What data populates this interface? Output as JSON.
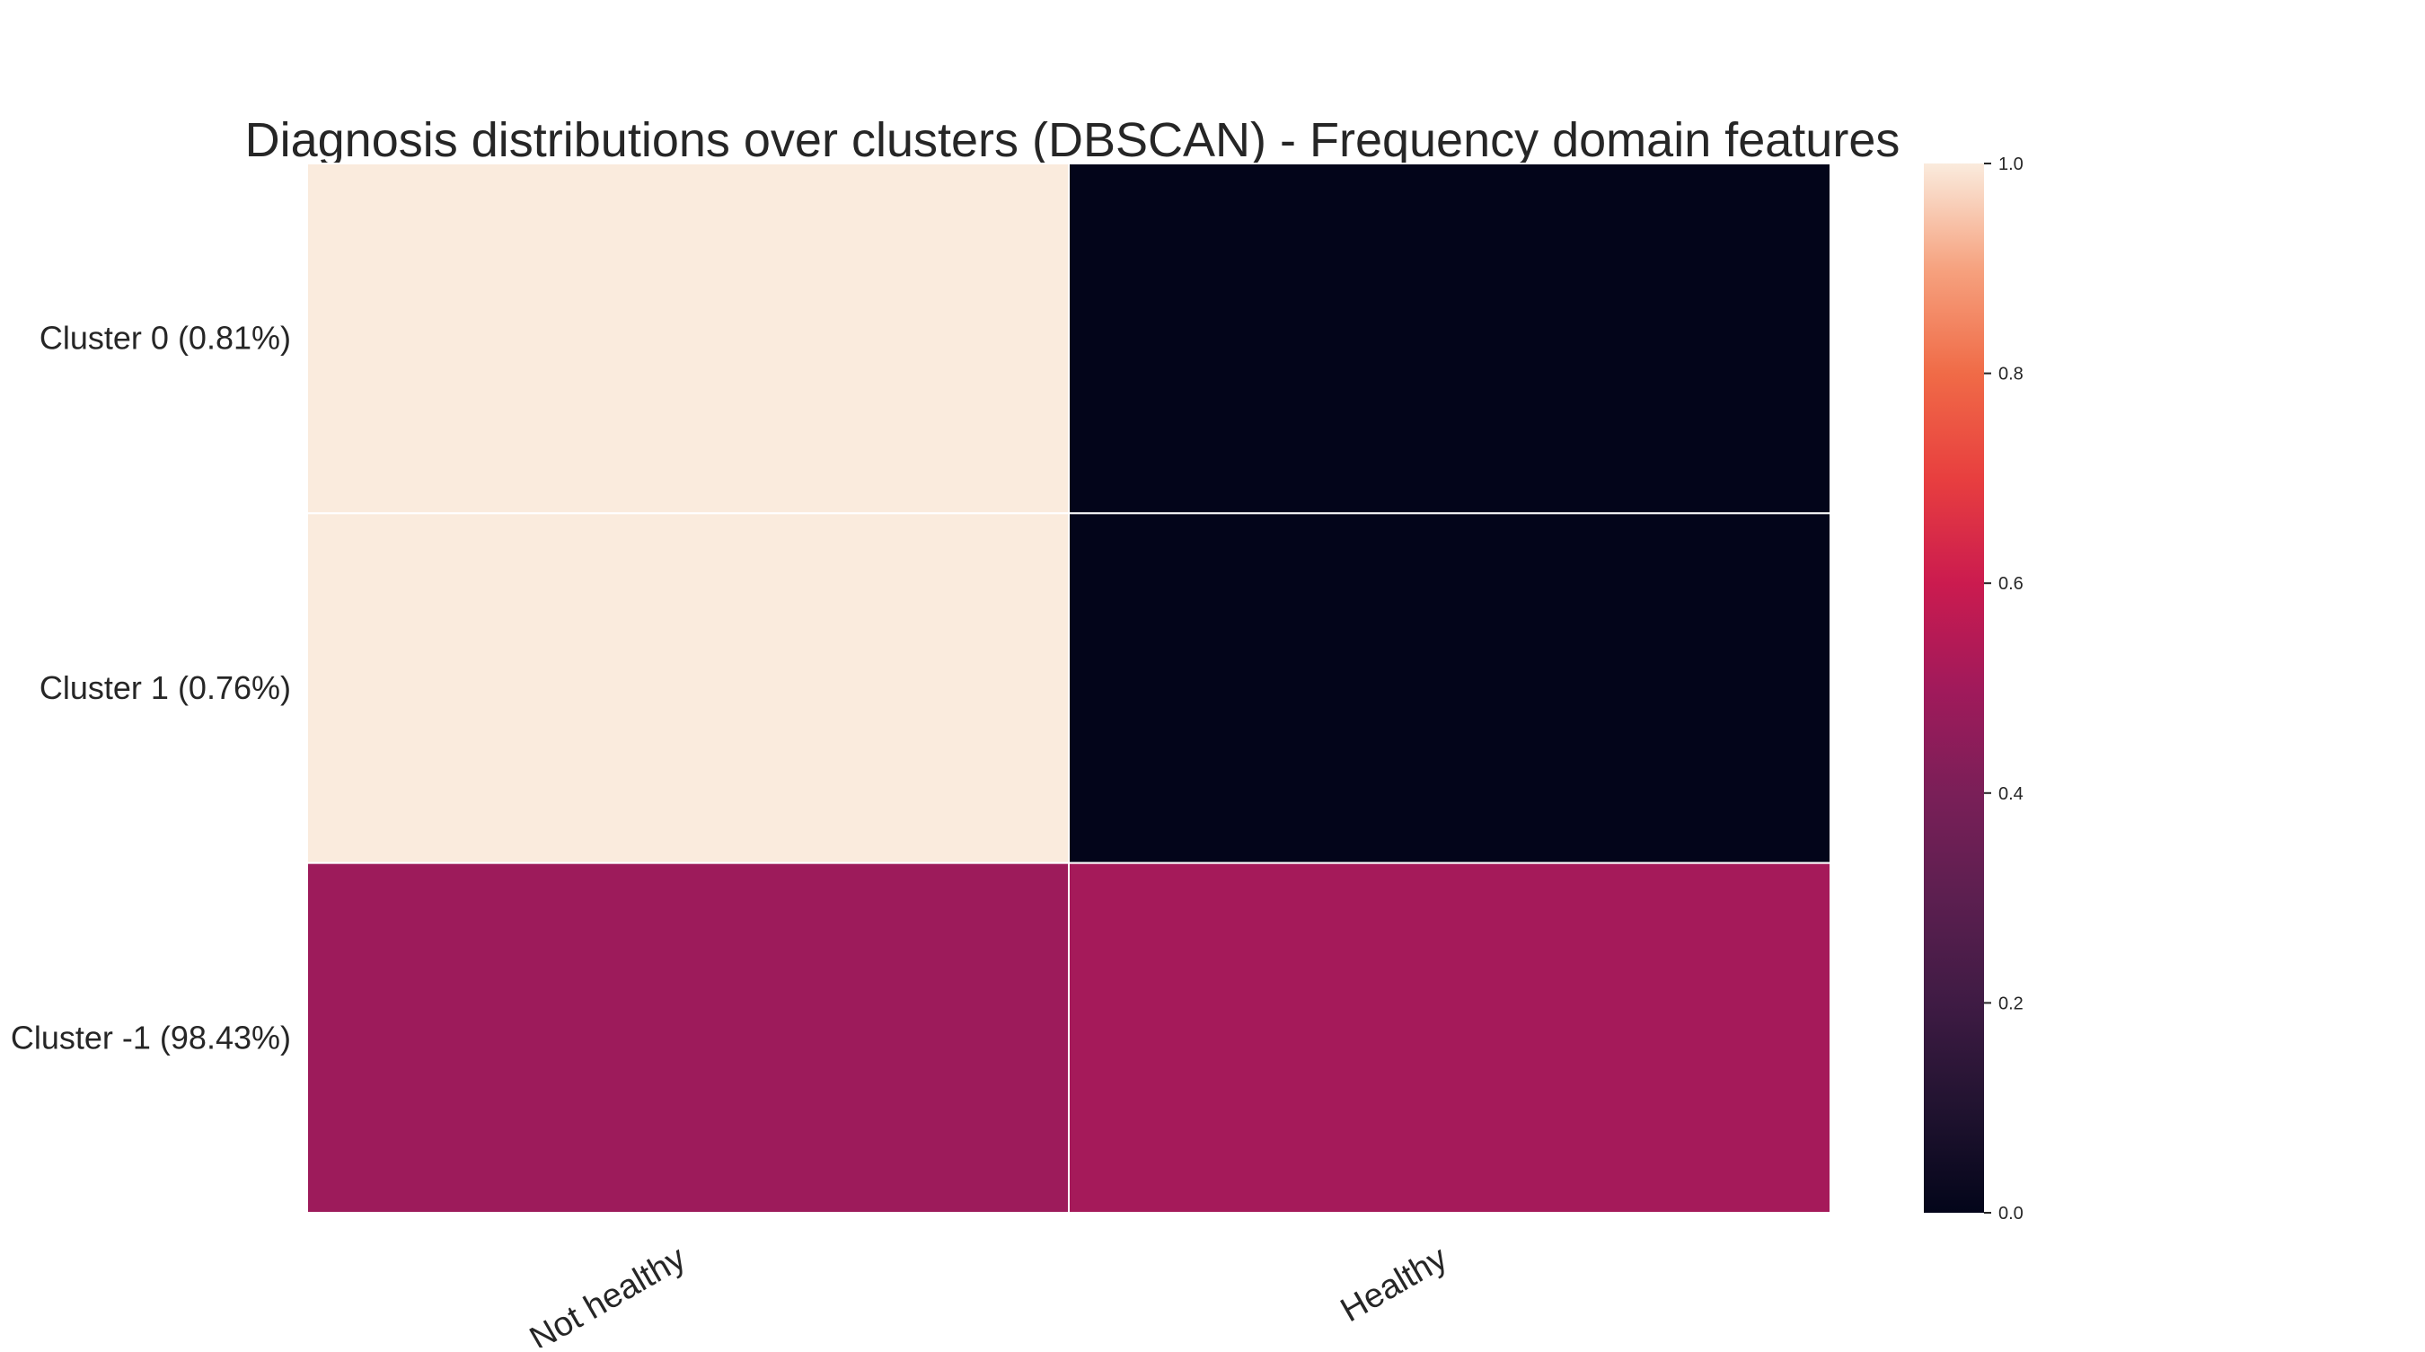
{
  "chart_data": {
    "type": "heatmap",
    "title": "Diagnosis distributions over clusters (DBSCAN) - Frequency domain features",
    "xlabel": "",
    "ylabel": "",
    "x_categories": [
      "Not healthy",
      "Healthy"
    ],
    "y_categories": [
      "Cluster 0 (0.81%)",
      "Cluster 1 (0.76%)",
      "Cluster -1 (98.43%)"
    ],
    "values": [
      [
        1.0,
        0.0
      ],
      [
        1.0,
        0.0
      ],
      [
        0.49,
        0.51
      ]
    ],
    "vmin": 0,
    "vmax": 1,
    "colormap": "rocket",
    "colorbar_ticks": [
      "0.0",
      "0.2",
      "0.4",
      "0.6",
      "0.8",
      "1.0"
    ],
    "cell_border_color": "#ffffff",
    "grid": false,
    "legend": "colorbar-right"
  }
}
